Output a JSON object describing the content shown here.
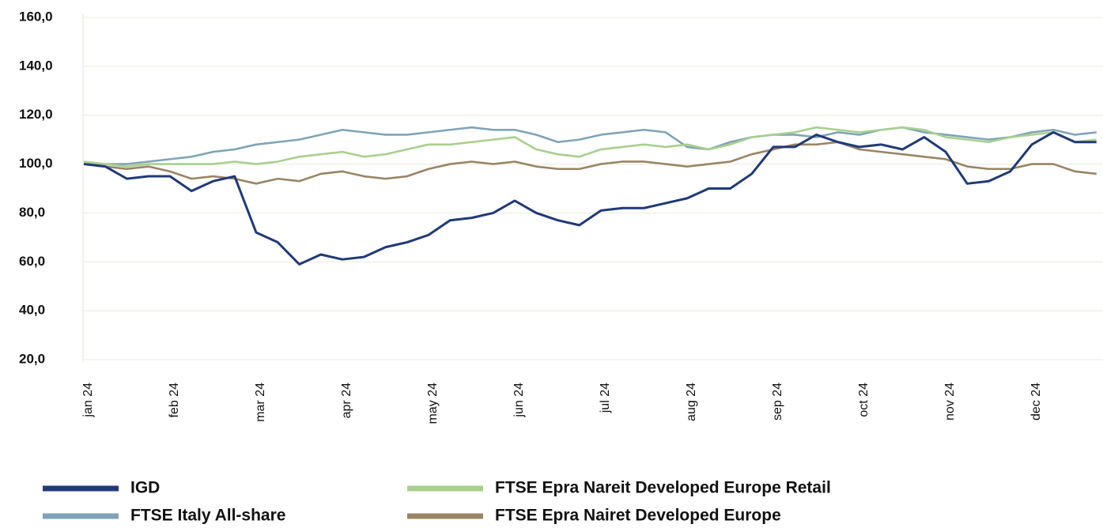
{
  "chart_data": {
    "type": "line",
    "categories": [
      "jan 24",
      null,
      null,
      null,
      "feb 24",
      null,
      null,
      null,
      "mar 24",
      null,
      null,
      null,
      "apr 24",
      null,
      null,
      null,
      "may 24",
      null,
      null,
      null,
      "jun 24",
      null,
      null,
      null,
      "jul 24",
      null,
      null,
      null,
      "aug 24",
      null,
      null,
      null,
      "sep 24",
      null,
      null,
      null,
      "oct 24",
      null,
      null,
      null,
      "nov 24",
      null,
      null,
      null,
      "dec 24",
      null,
      null,
      null
    ],
    "series": [
      {
        "name": "IGD",
        "color": "#1f3a78",
        "values": [
          100,
          99,
          94,
          95,
          95,
          89,
          93,
          95,
          72,
          68,
          59,
          63,
          61,
          62,
          66,
          68,
          71,
          77,
          78,
          80,
          85,
          80,
          77,
          75,
          81,
          82,
          82,
          84,
          86,
          90,
          90,
          96,
          107,
          107,
          112,
          109,
          107,
          108,
          106,
          111,
          105,
          92,
          93,
          97,
          108,
          113,
          109,
          109
        ]
      },
      {
        "name": "FTSE Italy All-share",
        "color": "#7fa3b8",
        "values": [
          100,
          100,
          100,
          101,
          102,
          103,
          105,
          106,
          108,
          109,
          110,
          112,
          114,
          113,
          112,
          112,
          113,
          114,
          115,
          114,
          114,
          112,
          109,
          110,
          112,
          113,
          114,
          113,
          107,
          106,
          109,
          111,
          112,
          112,
          111,
          113,
          112,
          114,
          115,
          113,
          112,
          111,
          110,
          111,
          113,
          114,
          112,
          113
        ]
      },
      {
        "name": "FTSE Epra Nareit Developed Europe Retail",
        "color": "#a8d08d",
        "values": [
          101,
          100,
          99,
          100,
          100,
          100,
          100,
          101,
          100,
          101,
          103,
          104,
          105,
          103,
          104,
          106,
          108,
          108,
          109,
          110,
          111,
          106,
          104,
          103,
          106,
          107,
          108,
          107,
          108,
          106,
          108,
          111,
          112,
          113,
          115,
          114,
          113,
          114,
          115,
          114,
          111,
          110,
          109,
          111,
          112,
          113,
          109,
          110
        ]
      },
      {
        "name": "FTSE Epra Nairet Developed Europe",
        "color": "#9b8464",
        "values": [
          100,
          99,
          98,
          99,
          97,
          94,
          95,
          94,
          92,
          94,
          93,
          96,
          97,
          95,
          94,
          95,
          98,
          100,
          101,
          100,
          101,
          99,
          98,
          98,
          100,
          101,
          101,
          100,
          99,
          100,
          101,
          104,
          106,
          108,
          108,
          109,
          106,
          105,
          104,
          103,
          102,
          99,
          98,
          98,
          100,
          100,
          97,
          96
        ]
      }
    ],
    "ylim": [
      20,
      160
    ],
    "yticks": [
      {
        "value": 20,
        "label": "20,0"
      },
      {
        "value": 40,
        "label": "40,0"
      },
      {
        "value": 60,
        "label": "60,0"
      },
      {
        "value": 80,
        "label": "80,0"
      },
      {
        "value": 100,
        "label": "100,0"
      },
      {
        "value": 120,
        "label": "120,0"
      },
      {
        "value": 140,
        "label": "140,0"
      },
      {
        "value": 160,
        "label": "160,0"
      }
    ],
    "grid": true
  }
}
